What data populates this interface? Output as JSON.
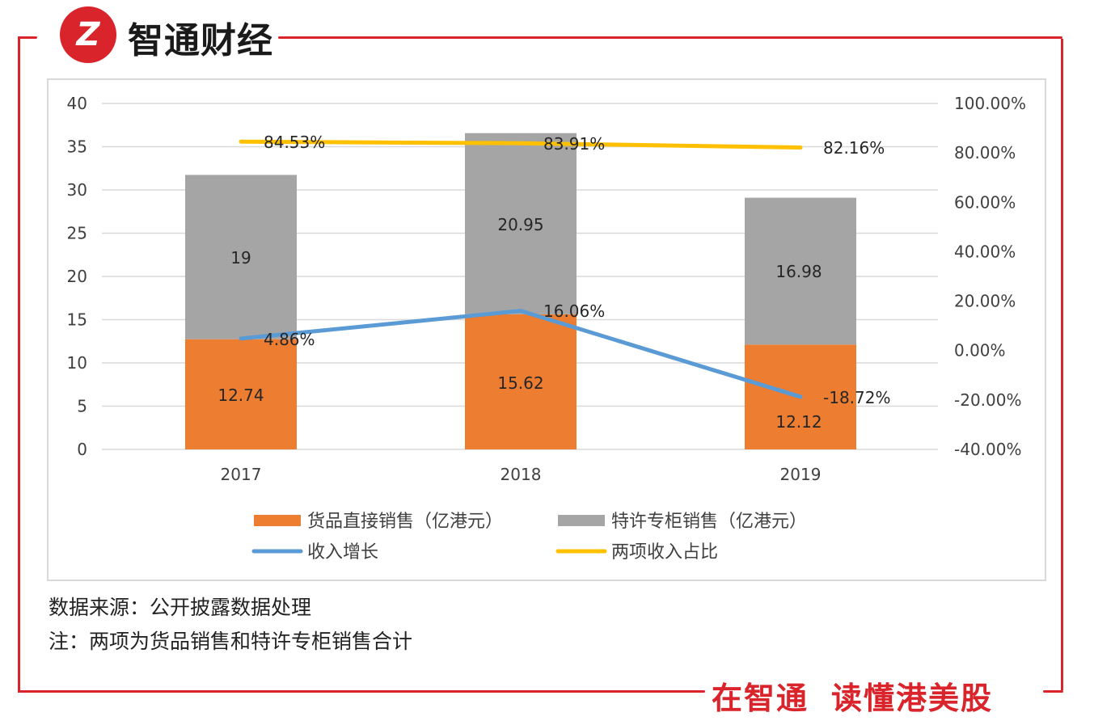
{
  "header": {
    "brand_name": "智通财经",
    "logo_glyph": "Z",
    "brand_color": "#d9242b"
  },
  "footer": {
    "source_note": "数据来源：公开披露数据处理",
    "footnote": "注：两项为货品销售和特许专柜销售合计",
    "slogan_part1": "在智通",
    "slogan_part2": "读懂港美股"
  },
  "chart_data": {
    "type": "bar",
    "stacked": true,
    "categories": [
      "2017",
      "2018",
      "2019"
    ],
    "series": [
      {
        "name": "货品直接销售（亿港元）",
        "type": "bar",
        "axis": "left",
        "color": "#ed7d31",
        "values": [
          12.74,
          15.62,
          12.12
        ],
        "labels": [
          "12.74",
          "15.62",
          "12.12"
        ]
      },
      {
        "name": "特许专柜销售（亿港元）",
        "type": "bar",
        "axis": "left",
        "color": "#a5a5a5",
        "values": [
          19,
          20.95,
          16.98
        ],
        "labels": [
          "19",
          "20.95",
          "16.98"
        ]
      },
      {
        "name": "收入增长",
        "type": "line",
        "axis": "right",
        "color": "#5b9bd5",
        "values": [
          4.86,
          16.06,
          -18.72
        ],
        "labels": [
          "4.86%",
          "16.06%",
          "-18.72%"
        ]
      },
      {
        "name": "两项收入占比",
        "type": "line",
        "axis": "right",
        "color": "#ffc000",
        "values": [
          84.53,
          83.91,
          82.16
        ],
        "labels": [
          "84.53%",
          "83.91%",
          "82.16%"
        ]
      }
    ],
    "y_left": {
      "min": 0,
      "max": 40,
      "ticks": [
        "0",
        "5",
        "10",
        "15",
        "20",
        "25",
        "30",
        "35",
        "40"
      ]
    },
    "y_right": {
      "min": -40,
      "max": 100,
      "ticks": [
        "-40.00%",
        "-20.00%",
        "0.00%",
        "20.00%",
        "40.00%",
        "60.00%",
        "80.00%",
        "100.00%"
      ]
    },
    "grid": true,
    "legend_position": "bottom"
  }
}
